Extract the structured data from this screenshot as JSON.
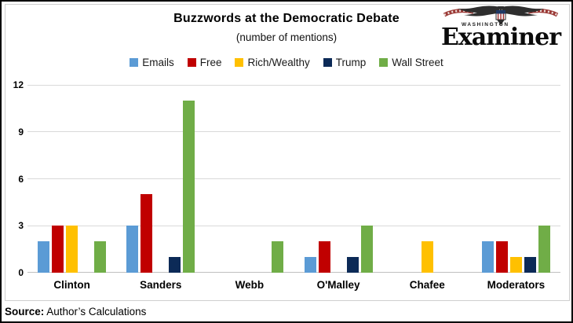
{
  "header": {
    "title": "Buzzwords at the Democratic Debate",
    "subtitle": "(number of mentions)"
  },
  "logo": {
    "masthead_top": "WASHINGTON",
    "masthead_name": "Examiner"
  },
  "chart_data": {
    "type": "bar",
    "title": "Buzzwords at the Democratic Debate",
    "subtitle": "(number of mentions)",
    "categories": [
      "Clinton",
      "Sanders",
      "Webb",
      "O'Malley",
      "Chafee",
      "Moderators"
    ],
    "series": [
      {
        "name": "Emails",
        "color": "#5B9BD5",
        "values": [
          2,
          3,
          0,
          1,
          0,
          2
        ]
      },
      {
        "name": "Free",
        "color": "#C00000",
        "values": [
          3,
          5,
          0,
          2,
          0,
          2
        ]
      },
      {
        "name": "Rich/Wealthy",
        "color": "#FFC000",
        "values": [
          3,
          0,
          0,
          0,
          2,
          1
        ]
      },
      {
        "name": "Trump",
        "color": "#0C2A57",
        "values": [
          0,
          1,
          0,
          1,
          0,
          1
        ]
      },
      {
        "name": "Wall Street",
        "color": "#70AD47",
        "values": [
          2,
          11,
          2,
          3,
          0,
          3
        ]
      }
    ],
    "xlabel": "",
    "ylabel": "",
    "ylim": [
      0,
      12
    ],
    "yticks": [
      0,
      3,
      6,
      9,
      12
    ],
    "grid": true,
    "grid_color": "#D9D9D9",
    "axis_color": "#BFBFBF",
    "legend_position": "top"
  },
  "footer": {
    "source_label": "Source:",
    "source_text": "Author’s Calculations"
  }
}
